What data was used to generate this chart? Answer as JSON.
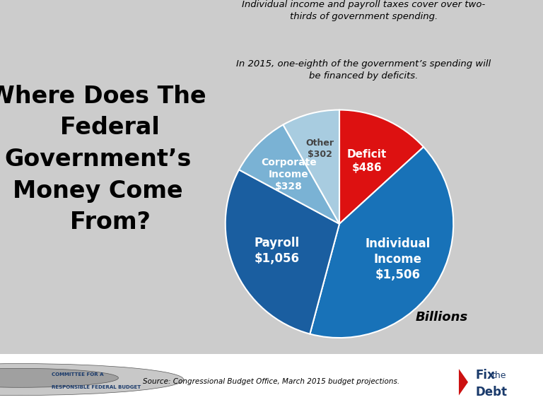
{
  "title_left": "Where Does The\n   Federal\nGovernment’s\nMoney Come\n   From?",
  "subtitle1": "Individual income and payroll taxes cover over two-\nthirds of government spending.",
  "subtitle2": "In 2015, one-eighth of the government’s spending will\nbe financed by deficits.",
  "slices": [
    {
      "label": "Deficit\n$486",
      "value": 486,
      "color": "#dd1111"
    },
    {
      "label": "Individual\nIncome\n$1,506",
      "value": 1506,
      "color": "#1872b8"
    },
    {
      "label": "Payroll\n$1,056",
      "value": 1056,
      "color": "#1a5ea0"
    },
    {
      "label": "Corporate\nIncome\n$328",
      "value": 328,
      "color": "#7ab2d4"
    },
    {
      "label": "Other\n$302",
      "value": 302,
      "color": "#a8cce0"
    }
  ],
  "note_billions": "Billions",
  "source": "Source: Congressional Budget Office, March 2015 budget projections.",
  "bg_color": "#cccccc",
  "label_font_sizes": {
    "Deficit\n$486": 11,
    "Individual\nIncome\n$1,506": 12,
    "Payroll\n$1,056": 12,
    "Corporate\nIncome\n$328": 10,
    "Other\n$302": 9
  },
  "label_colors": {
    "Deficit\n$486": "white",
    "Individual\nIncome\n$1,506": "white",
    "Payroll\n$1,056": "white",
    "Corporate\nIncome\n$328": "white",
    "Other\n$302": "#444444"
  },
  "label_radii": {
    "Deficit\n$486": 0.6,
    "Individual\nIncome\n$1,506": 0.6,
    "Payroll\n$1,056": 0.6,
    "Corporate\nIncome\n$328": 0.62,
    "Other\n$302": 0.68
  },
  "startangle": 90,
  "counterclock": false
}
